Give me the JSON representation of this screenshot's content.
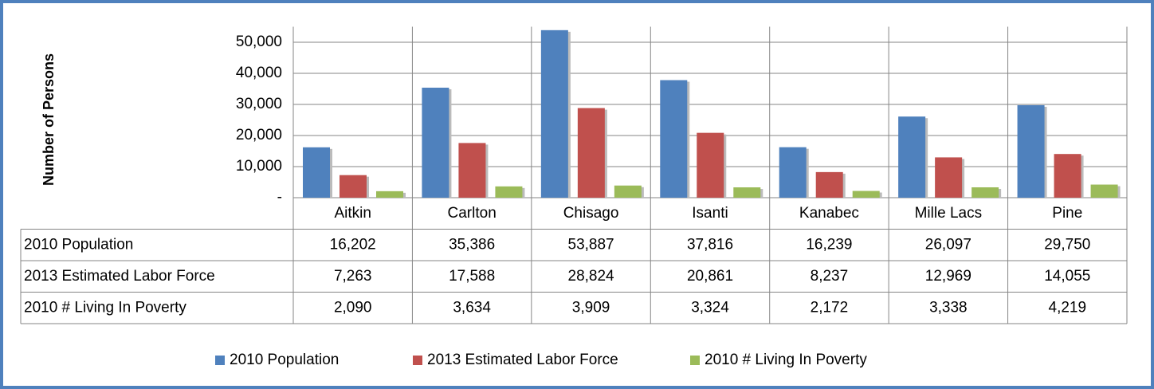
{
  "chart_data": {
    "type": "bar",
    "y_label": "Number of Persons",
    "categories": [
      "Aitkin",
      "Carlton",
      "Chisago",
      "Isanti",
      "Kanabec",
      "Mille Lacs",
      "Pine"
    ],
    "series": [
      {
        "name": "2010 Population",
        "color": "#4f81bd",
        "values": [
          16202,
          35386,
          53887,
          37816,
          16239,
          26097,
          29750
        ],
        "value_labels": [
          "16,202",
          "35,386",
          "53,887",
          "37,816",
          "16,239",
          "26,097",
          "29,750"
        ]
      },
      {
        "name": "2013 Estimated Labor Force",
        "color": "#c0504d",
        "values": [
          7263,
          17588,
          28824,
          20861,
          8237,
          12969,
          14055
        ],
        "value_labels": [
          "7,263",
          "17,588",
          "28,824",
          "20,861",
          "8,237",
          "12,969",
          "14,055"
        ]
      },
      {
        "name": "2010 # Living In Poverty",
        "color": "#9bbb59",
        "values": [
          2090,
          3634,
          3909,
          3324,
          2172,
          3338,
          4219
        ],
        "value_labels": [
          "2,090",
          "3,634",
          "3,909",
          "3,324",
          "2,172",
          "3,338",
          "4,219"
        ]
      }
    ],
    "ylim": [
      0,
      55000
    ],
    "yticks": [
      {
        "value": 0,
        "label": "-"
      },
      {
        "value": 10000,
        "label": "10,000"
      },
      {
        "value": 20000,
        "label": "20,000"
      },
      {
        "value": 30000,
        "label": "30,000"
      },
      {
        "value": 40000,
        "label": "40,000"
      },
      {
        "value": 50000,
        "label": "50,000"
      }
    ],
    "grid": true
  }
}
